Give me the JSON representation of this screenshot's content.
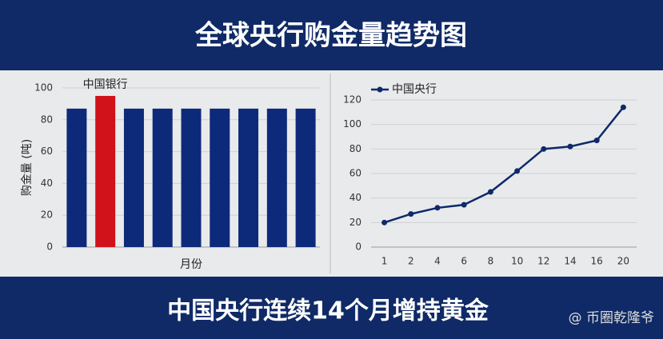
{
  "title": "全球央行购金量趋势图",
  "chart_data": [
    {
      "type": "bar",
      "categories": [
        null,
        null,
        null,
        null,
        null,
        null,
        null,
        null,
        null
      ],
      "values": [
        87,
        95,
        87,
        87,
        87,
        87,
        87,
        87,
        87
      ],
      "colors": [
        "#0d2a7a",
        "#d0121b",
        "#0d2a7a",
        "#0d2a7a",
        "#0d2a7a",
        "#0d2a7a",
        "#0d2a7a",
        "#0d2a7a",
        "#0d2a7a"
      ],
      "annotation": "中国银行",
      "y_label": "购金量 (吨)",
      "x_label": "月份",
      "ylim": [
        0,
        100
      ],
      "yticks": [
        0,
        20,
        40,
        60,
        80,
        100
      ],
      "grid": true
    },
    {
      "type": "line",
      "categories": [
        "1",
        "2",
        "4",
        "6",
        "8",
        "10",
        "12",
        "14",
        "16",
        "20"
      ],
      "series": [
        {
          "name": "中国央行",
          "color": "#0d2a6a",
          "values": [
            20,
            27,
            32,
            34.5,
            45,
            62,
            80,
            82,
            87,
            114
          ]
        }
      ],
      "ylim": [
        0,
        120
      ],
      "yticks": [
        0,
        20,
        40,
        60,
        80,
        100,
        120
      ],
      "grid": true,
      "legend": "top-left"
    }
  ],
  "caption": "中国央行连续14个月增持黄金",
  "watermark": "@ 币圈乾隆爷"
}
